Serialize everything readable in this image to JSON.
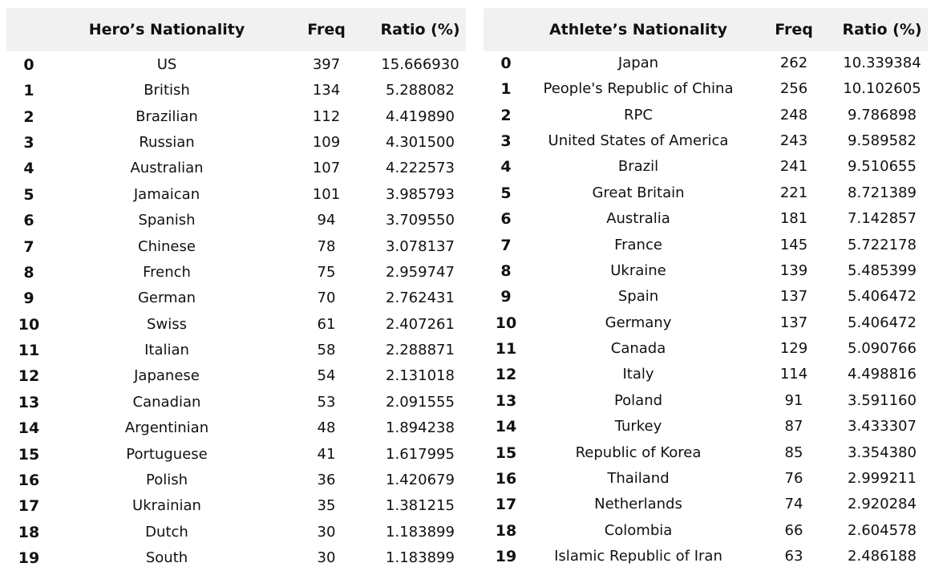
{
  "left_table": {
    "headers": {
      "name": "Hero’s Nationality",
      "freq": "Freq",
      "ratio": "Ratio (%)"
    },
    "rows": [
      {
        "idx": "0",
        "name": "US",
        "freq": "397",
        "ratio": "15.666930"
      },
      {
        "idx": "1",
        "name": "British",
        "freq": "134",
        "ratio": "5.288082"
      },
      {
        "idx": "2",
        "name": "Brazilian",
        "freq": "112",
        "ratio": "4.419890"
      },
      {
        "idx": "3",
        "name": "Russian",
        "freq": "109",
        "ratio": "4.301500"
      },
      {
        "idx": "4",
        "name": "Australian",
        "freq": "107",
        "ratio": "4.222573"
      },
      {
        "idx": "5",
        "name": "Jamaican",
        "freq": "101",
        "ratio": "3.985793"
      },
      {
        "idx": "6",
        "name": "Spanish",
        "freq": "94",
        "ratio": "3.709550"
      },
      {
        "idx": "7",
        "name": "Chinese",
        "freq": "78",
        "ratio": "3.078137"
      },
      {
        "idx": "8",
        "name": "French",
        "freq": "75",
        "ratio": "2.959747"
      },
      {
        "idx": "9",
        "name": "German",
        "freq": "70",
        "ratio": "2.762431"
      },
      {
        "idx": "10",
        "name": "Swiss",
        "freq": "61",
        "ratio": "2.407261"
      },
      {
        "idx": "11",
        "name": "Italian",
        "freq": "58",
        "ratio": "2.288871"
      },
      {
        "idx": "12",
        "name": "Japanese",
        "freq": "54",
        "ratio": "2.131018"
      },
      {
        "idx": "13",
        "name": "Canadian",
        "freq": "53",
        "ratio": "2.091555"
      },
      {
        "idx": "14",
        "name": "Argentinian",
        "freq": "48",
        "ratio": "1.894238"
      },
      {
        "idx": "15",
        "name": "Portuguese",
        "freq": "41",
        "ratio": "1.617995"
      },
      {
        "idx": "16",
        "name": "Polish",
        "freq": "36",
        "ratio": "1.420679"
      },
      {
        "idx": "17",
        "name": "Ukrainian",
        "freq": "35",
        "ratio": "1.381215"
      },
      {
        "idx": "18",
        "name": "Dutch",
        "freq": "30",
        "ratio": "1.183899"
      },
      {
        "idx": "19",
        "name": "South",
        "freq": "30",
        "ratio": "1.183899"
      }
    ]
  },
  "right_table": {
    "headers": {
      "name": "Athlete’s Nationality",
      "freq": "Freq",
      "ratio": "Ratio (%)"
    },
    "rows": [
      {
        "idx": "0",
        "name": "Japan",
        "freq": "262",
        "ratio": "10.339384"
      },
      {
        "idx": "1",
        "name": "People's Republic of China",
        "freq": "256",
        "ratio": "10.102605"
      },
      {
        "idx": "2",
        "name": "RPC",
        "freq": "248",
        "ratio": "9.786898"
      },
      {
        "idx": "3",
        "name": "United States of America",
        "freq": "243",
        "ratio": "9.589582"
      },
      {
        "idx": "4",
        "name": "Brazil",
        "freq": "241",
        "ratio": "9.510655"
      },
      {
        "idx": "5",
        "name": "Great Britain",
        "freq": "221",
        "ratio": "8.721389"
      },
      {
        "idx": "6",
        "name": "Australia",
        "freq": "181",
        "ratio": "7.142857"
      },
      {
        "idx": "7",
        "name": "France",
        "freq": "145",
        "ratio": "5.722178"
      },
      {
        "idx": "8",
        "name": "Ukraine",
        "freq": "139",
        "ratio": "5.485399"
      },
      {
        "idx": "9",
        "name": "Spain",
        "freq": "137",
        "ratio": "5.406472"
      },
      {
        "idx": "10",
        "name": "Germany",
        "freq": "137",
        "ratio": "5.406472"
      },
      {
        "idx": "11",
        "name": "Canada",
        "freq": "129",
        "ratio": "5.090766"
      },
      {
        "idx": "12",
        "name": "Italy",
        "freq": "114",
        "ratio": "4.498816"
      },
      {
        "idx": "13",
        "name": "Poland",
        "freq": "91",
        "ratio": "3.591160"
      },
      {
        "idx": "14",
        "name": "Turkey",
        "freq": "87",
        "ratio": "3.433307"
      },
      {
        "idx": "15",
        "name": "Republic of Korea",
        "freq": "85",
        "ratio": "3.354380"
      },
      {
        "idx": "16",
        "name": "Thailand",
        "freq": "76",
        "ratio": "2.999211"
      },
      {
        "idx": "17",
        "name": "Netherlands",
        "freq": "74",
        "ratio": "2.920284"
      },
      {
        "idx": "18",
        "name": "Colombia",
        "freq": "66",
        "ratio": "2.604578"
      },
      {
        "idx": "19",
        "name": "Islamic Republic of Iran",
        "freq": "63",
        "ratio": "2.486188"
      }
    ]
  }
}
